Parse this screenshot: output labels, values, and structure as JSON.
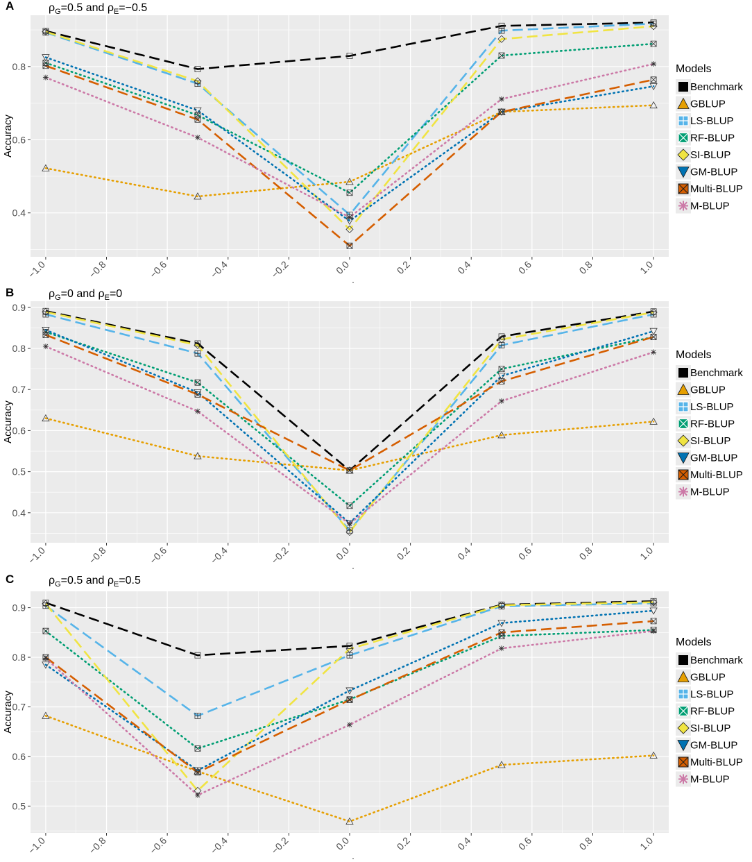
{
  "chart_data": [
    {
      "type": "line",
      "panel": "A",
      "title": "ρG=0.5 and ρE=−0.5",
      "title_parts": [
        "ρ",
        "G",
        "=0.5 and ρ",
        "E",
        "=−0.5"
      ],
      "ylabel": "Accuracy",
      "xlabel": "",
      "xlim": [
        -1.05,
        1.05
      ],
      "ylim": [
        0.28,
        0.94
      ],
      "xticks": [
        -1.0,
        -0.8,
        -0.6,
        -0.4,
        -0.2,
        0.0,
        0.2,
        0.4,
        0.6,
        0.8,
        1.0
      ],
      "xtick_labels": [
        "−1.0",
        "−0.8",
        "−0.6",
        "−0.4",
        "−0.2",
        "0.0",
        "0.2",
        "0.4",
        "0.6",
        "0.8",
        "1.0"
      ],
      "yticks": [
        0.4,
        0.6,
        0.8
      ],
      "ytick_labels": [
        "0.4",
        "0.6",
        "0.8"
      ],
      "x": [
        -1.0,
        -0.5,
        0.0,
        0.5,
        1.0
      ],
      "series": [
        {
          "name": "Benchmark",
          "values": [
            0.897,
            0.793,
            0.829,
            0.911,
            0.92
          ]
        },
        {
          "name": "GBLUP",
          "values": [
            0.522,
            0.445,
            0.485,
            0.676,
            0.694
          ]
        },
        {
          "name": "LS-BLUP",
          "values": [
            0.893,
            0.753,
            0.395,
            0.898,
            0.917
          ]
        },
        {
          "name": "RF-BLUP",
          "values": [
            0.81,
            0.667,
            0.455,
            0.83,
            0.862
          ]
        },
        {
          "name": "SI-BLUP",
          "values": [
            0.895,
            0.76,
            0.355,
            0.875,
            0.91
          ]
        },
        {
          "name": "GM-BLUP",
          "values": [
            0.825,
            0.68,
            0.378,
            0.676,
            0.746
          ]
        },
        {
          "name": "Multi-BLUP",
          "values": [
            0.802,
            0.655,
            0.31,
            0.676,
            0.764
          ]
        },
        {
          "name": "M-BLUP",
          "values": [
            0.77,
            0.606,
            0.388,
            0.711,
            0.807
          ]
        }
      ]
    },
    {
      "type": "line",
      "panel": "B",
      "title": "ρG=0 and ρE=0",
      "title_parts": [
        "ρ",
        "G",
        "=0 and ρ",
        "E",
        "=0"
      ],
      "ylabel": "Accuracy",
      "xlabel": "",
      "xlim": [
        -1.05,
        1.05
      ],
      "ylim": [
        0.327,
        0.915
      ],
      "xticks": [
        -1.0,
        -0.8,
        -0.6,
        -0.4,
        -0.2,
        0.0,
        0.2,
        0.4,
        0.6,
        0.8,
        1.0
      ],
      "xtick_labels": [
        "−1.0",
        "−0.8",
        "−0.6",
        "−0.4",
        "−0.2",
        "0.0",
        "0.2",
        "0.4",
        "0.6",
        "0.8",
        "1.0"
      ],
      "yticks": [
        0.4,
        0.5,
        0.6,
        0.7,
        0.8,
        0.9
      ],
      "ytick_labels": [
        "0.4",
        "0.5",
        "0.6",
        "0.7",
        "0.8",
        "0.9"
      ],
      "x": [
        -1.0,
        -0.5,
        0.0,
        0.5,
        1.0
      ],
      "series": [
        {
          "name": "Benchmark",
          "values": [
            0.891,
            0.812,
            0.503,
            0.829,
            0.89
          ]
        },
        {
          "name": "GBLUP",
          "values": [
            0.63,
            0.538,
            0.503,
            0.589,
            0.622
          ]
        },
        {
          "name": "LS-BLUP",
          "values": [
            0.883,
            0.788,
            0.357,
            0.808,
            0.883
          ]
        },
        {
          "name": "RF-BLUP",
          "values": [
            0.84,
            0.717,
            0.417,
            0.75,
            0.828
          ]
        },
        {
          "name": "SI-BLUP",
          "values": [
            0.889,
            0.808,
            0.353,
            0.822,
            0.888
          ]
        },
        {
          "name": "GM-BLUP",
          "values": [
            0.845,
            0.693,
            0.375,
            0.733,
            0.842
          ]
        },
        {
          "name": "Multi-BLUP",
          "values": [
            0.833,
            0.688,
            0.503,
            0.72,
            0.828
          ]
        },
        {
          "name": "M-BLUP",
          "values": [
            0.805,
            0.647,
            0.373,
            0.672,
            0.791
          ]
        }
      ]
    },
    {
      "type": "line",
      "panel": "C",
      "title": "ρG=0.5 and ρE=0.5",
      "title_parts": [
        "ρ",
        "G",
        "=0.5 and ρ",
        "E",
        "=0.5"
      ],
      "ylabel": "Accuracy",
      "xlabel": "",
      "xlim": [
        -1.05,
        1.05
      ],
      "ylim": [
        0.446,
        0.933
      ],
      "xticks": [
        -1.0,
        -0.8,
        -0.6,
        -0.4,
        -0.2,
        0.0,
        0.2,
        0.4,
        0.6,
        0.8,
        1.0
      ],
      "xtick_labels": [
        "−1.0",
        "−0.8",
        "−0.6",
        "−0.4",
        "−0.2",
        "0.0",
        "0.2",
        "0.4",
        "0.6",
        "0.8",
        "1.0"
      ],
      "yticks": [
        0.5,
        0.6,
        0.7,
        0.8,
        0.9
      ],
      "ytick_labels": [
        "0.5",
        "0.6",
        "0.7",
        "0.8",
        "0.9"
      ],
      "x": [
        -1.0,
        -0.5,
        0.0,
        0.5,
        1.0
      ],
      "series": [
        {
          "name": "Benchmark",
          "values": [
            0.91,
            0.804,
            0.823,
            0.906,
            0.913
          ]
        },
        {
          "name": "GBLUP",
          "values": [
            0.682,
            0.57,
            0.469,
            0.583,
            0.602
          ]
        },
        {
          "name": "LS-BLUP",
          "values": [
            0.904,
            0.682,
            0.804,
            0.903,
            0.909
          ]
        },
        {
          "name": "RF-BLUP",
          "values": [
            0.853,
            0.616,
            0.715,
            0.843,
            0.855
          ]
        },
        {
          "name": "SI-BLUP",
          "values": [
            0.908,
            0.531,
            0.817,
            0.905,
            0.911
          ]
        },
        {
          "name": "GM-BLUP",
          "values": [
            0.785,
            0.572,
            0.733,
            0.869,
            0.894
          ]
        },
        {
          "name": "Multi-BLUP",
          "values": [
            0.8,
            0.568,
            0.714,
            0.85,
            0.873
          ]
        },
        {
          "name": "M-BLUP",
          "values": [
            0.798,
            0.522,
            0.664,
            0.818,
            0.853
          ]
        }
      ]
    }
  ],
  "legend": {
    "title": "Models",
    "entries": [
      "Benchmark",
      "GBLUP",
      "LS-BLUP",
      "RF-BLUP",
      "SI-BLUP",
      "GM-BLUP",
      "Multi-BLUP",
      "M-BLUP"
    ]
  },
  "series_styles": [
    {
      "name": "Benchmark",
      "color": "#000000",
      "dash": "long",
      "shape": "square"
    },
    {
      "name": "GBLUP",
      "color": "#E69F00",
      "dash": "dotted",
      "shape": "triangle"
    },
    {
      "name": "LS-BLUP",
      "color": "#56B4E9",
      "dash": "long",
      "shape": "plus-square"
    },
    {
      "name": "RF-BLUP",
      "color": "#009E73",
      "dash": "dotted",
      "shape": "x-square"
    },
    {
      "name": "SI-BLUP",
      "color": "#F0E442",
      "dash": "long",
      "shape": "diamond"
    },
    {
      "name": "GM-BLUP",
      "color": "#0072B2",
      "dash": "dotted",
      "shape": "triangle-down"
    },
    {
      "name": "Multi-BLUP",
      "color": "#D55E00",
      "dash": "long",
      "shape": "x-box"
    },
    {
      "name": "M-BLUP",
      "color": "#CC79A7",
      "dash": "dotted",
      "shape": "asterisk"
    }
  ],
  "colors": {
    "panel_bg": "#EBEBEB",
    "grid": "#FFFFFF",
    "legend_key_bg": "#EBEBEB"
  }
}
